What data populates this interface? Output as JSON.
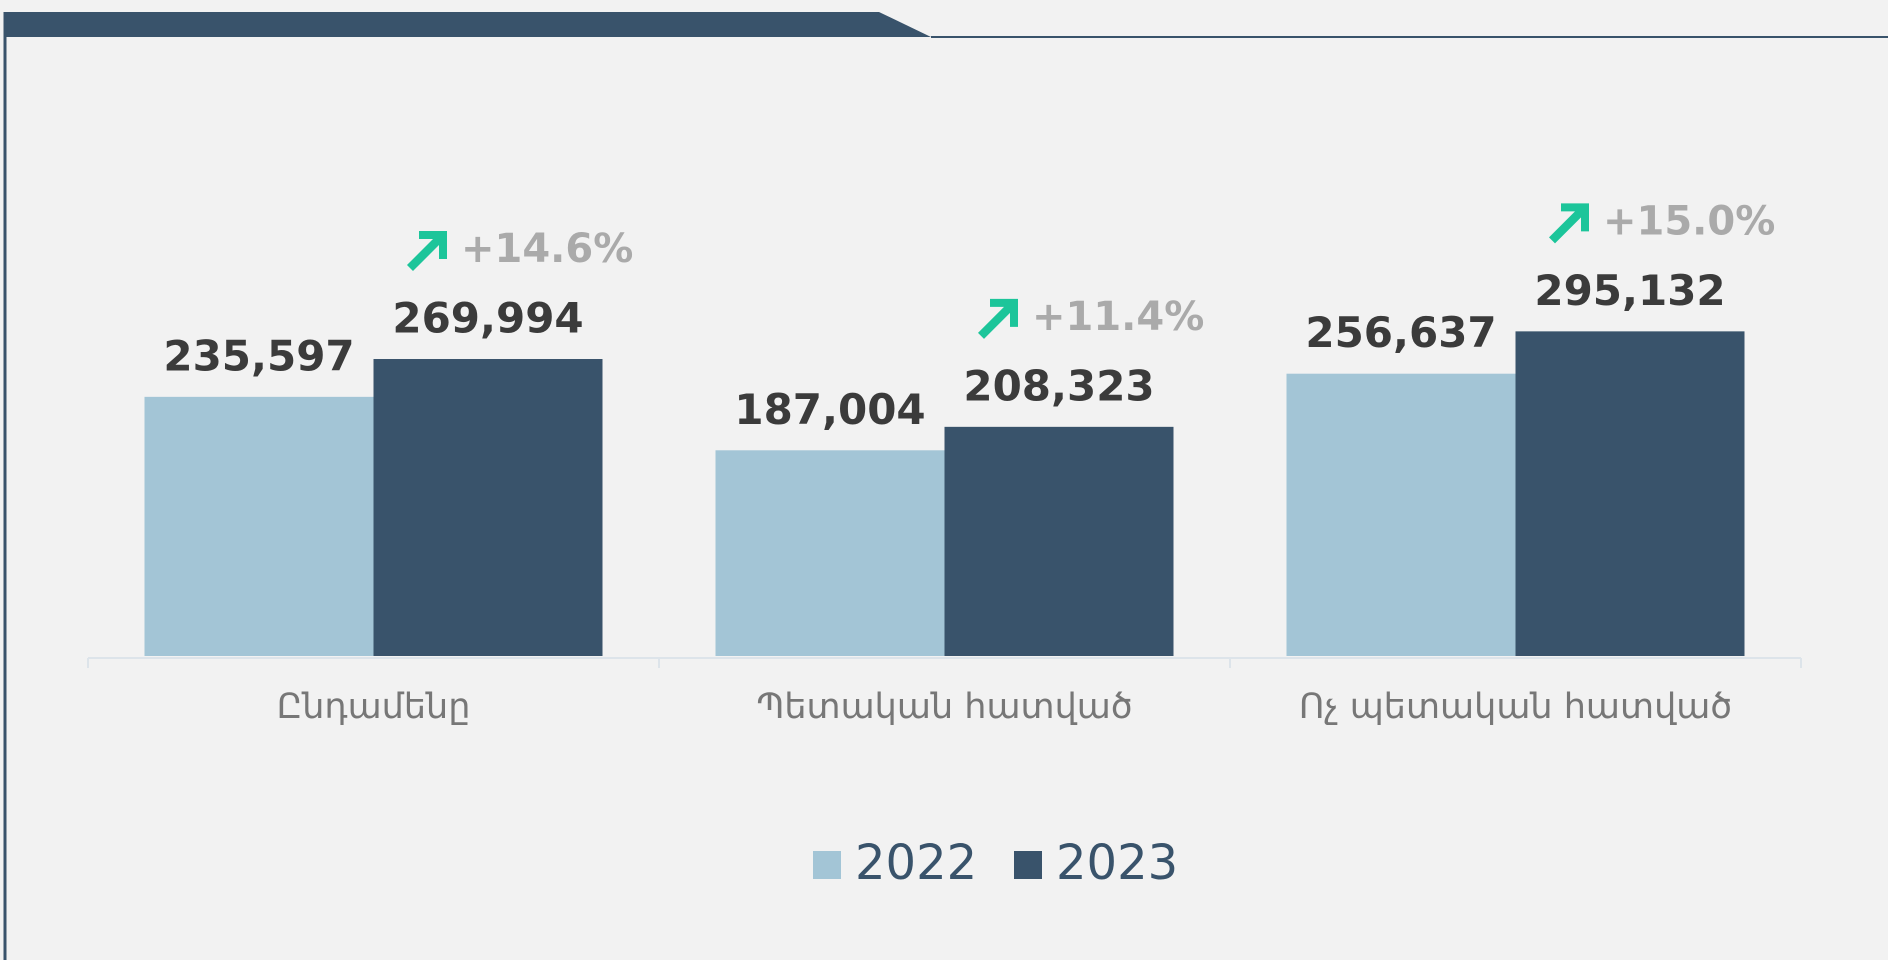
{
  "chart_data": {
    "type": "bar",
    "categories": [
      "Ընդամենը",
      "Պետական հատված",
      "Ոչ պետական հատված"
    ],
    "series": [
      {
        "name": "2022",
        "color": "#a3c5d6",
        "values": [
          235597,
          187004,
          256637
        ],
        "value_labels": [
          "235,597",
          "187,004",
          "256,637"
        ]
      },
      {
        "name": "2023",
        "color": "#39536b",
        "values": [
          269994,
          208323,
          295132
        ],
        "value_labels": [
          "269,994",
          "208,323",
          "295,132"
        ]
      }
    ],
    "annotations": [
      "+14.6%",
      "+11.4%",
      "+15.0%"
    ],
    "annotation_color": "#aaaaaa",
    "ylim": [
      0,
      300000
    ],
    "legend": "bottom"
  }
}
